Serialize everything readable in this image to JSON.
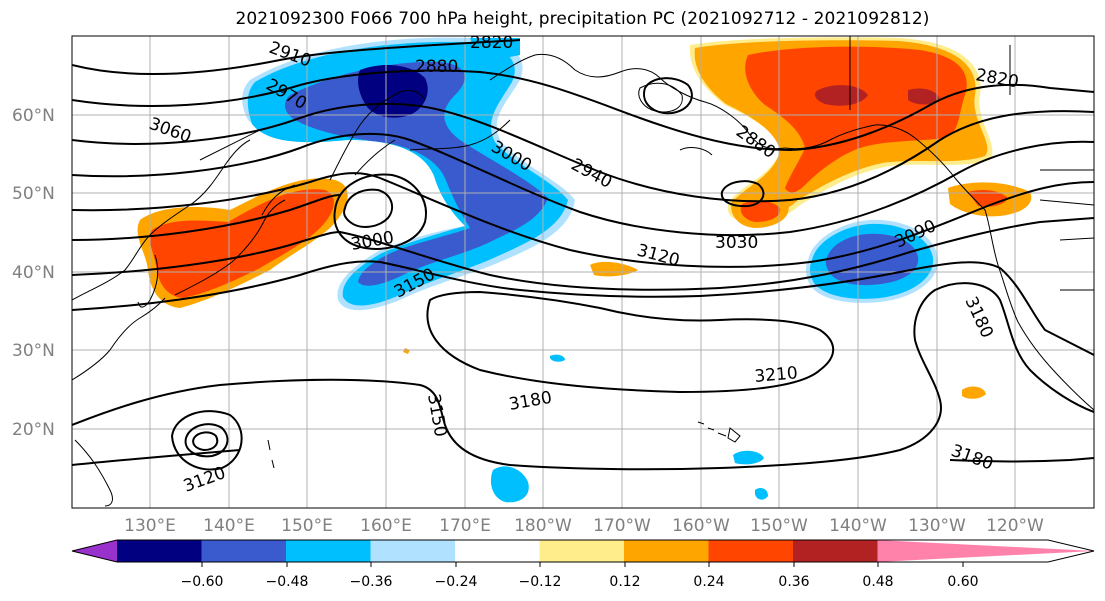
{
  "title": "2021092300 F066 700 hPa height, precipitation PC (2021092712 - 2021092812)",
  "map": {
    "lat_labels": [
      "60°N",
      "50°N",
      "40°N",
      "30°N",
      "20°N"
    ],
    "lon_labels": [
      "130°E",
      "140°E",
      "150°E",
      "160°E",
      "170°E",
      "180°W",
      "170°W",
      "160°W",
      "150°W",
      "140°W",
      "130°W",
      "120°W"
    ],
    "contour_labels": [
      "2820",
      "2910",
      "2880",
      "2970",
      "2820",
      "3060",
      "2880",
      "3000",
      "2940",
      "3000",
      "3150",
      "3120",
      "3030",
      "3090",
      "3180",
      "3210",
      "3180",
      "3150",
      "3120",
      "3180"
    ]
  },
  "colorbar": {
    "ticks": [
      "−0.60",
      "−0.48",
      "−0.36",
      "−0.24",
      "−0.12",
      "0.12",
      "0.24",
      "0.36",
      "0.48",
      "0.60"
    ],
    "colors": [
      "#9932cc",
      "#000080",
      "#3a5bcd",
      "#00bfff",
      "#b0e2ff",
      "#ffffff",
      "#ffec8b",
      "#ffa500",
      "#ff4500",
      "#b22222",
      "#ff82ab"
    ]
  },
  "shading_colors": {
    "dark_navy": "#000080",
    "royal_blue": "#3a5bcd",
    "sky_blue": "#00bfff",
    "pale_blue": "#b0e2ff",
    "pale_yellow": "#ffec8b",
    "orange": "#ffa500",
    "red_orange": "#ff4500",
    "firebrick": "#b22222"
  }
}
